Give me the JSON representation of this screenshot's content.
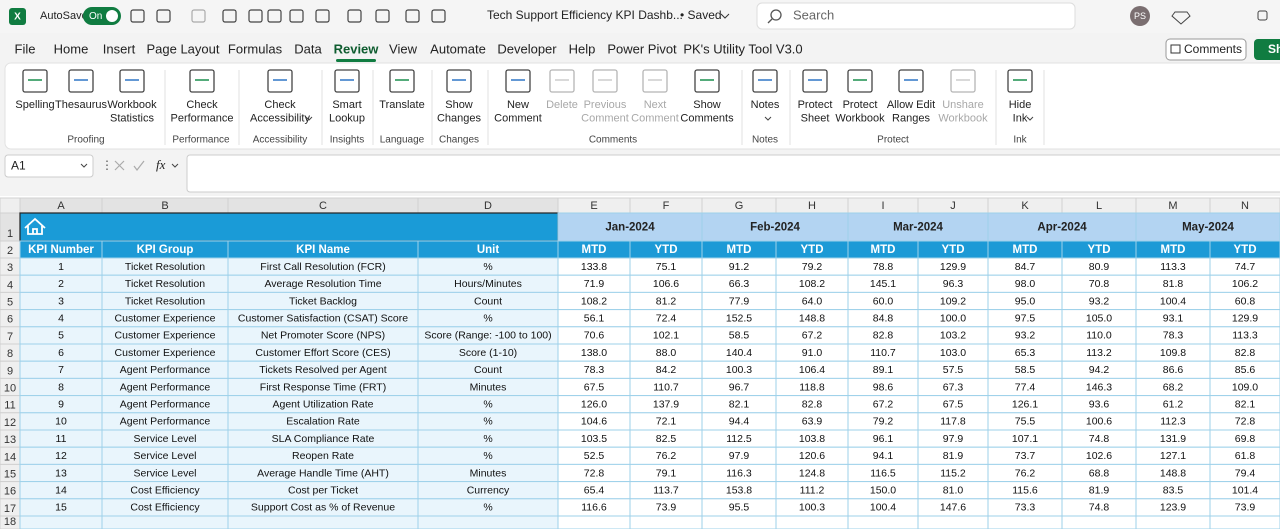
{
  "titlebar": {
    "app": "X",
    "autosave": "AutoSave",
    "toggle": "On",
    "filename": "Tech Support Efficiency KPI Dashb...",
    "saved": "• Saved",
    "search": "Search",
    "avatar": "PS"
  },
  "menu": {
    "tabs": [
      "File",
      "Home",
      "Insert",
      "Page Layout",
      "Formulas",
      "Data",
      "Review",
      "View",
      "Automate",
      "Developer",
      "Help",
      "Power Pivot",
      "PK's Utility Tool V3.0"
    ],
    "active": "Review",
    "comments": "Comments",
    "share": "Share"
  },
  "ribbon": {
    "buttons": [
      {
        "label": [
          "Spelling"
        ]
      },
      {
        "label": [
          "Thesaurus"
        ]
      },
      {
        "label": [
          "Workbook",
          "Statistics"
        ]
      },
      {
        "label": [
          "Check",
          "Performance"
        ]
      },
      {
        "label": [
          "Check",
          "Accessibility"
        ]
      },
      {
        "label": [
          "Smart",
          "Lookup"
        ]
      },
      {
        "label": [
          "Translate"
        ]
      },
      {
        "label": [
          "Show",
          "Changes"
        ]
      },
      {
        "label": [
          "New",
          "Comment"
        ]
      },
      {
        "label": [
          "Delete"
        ],
        "disabled": true
      },
      {
        "label": [
          "Previous",
          "Comment"
        ],
        "disabled": true
      },
      {
        "label": [
          "Next",
          "Comment"
        ],
        "disabled": true
      },
      {
        "label": [
          "Show",
          "Comments"
        ]
      },
      {
        "label": [
          "Notes"
        ]
      },
      {
        "label": [
          "Protect",
          "Sheet"
        ]
      },
      {
        "label": [
          "Protect",
          "Workbook"
        ]
      },
      {
        "label": [
          "Allow Edit",
          "Ranges"
        ]
      },
      {
        "label": [
          "Unshare",
          "Workbook"
        ],
        "disabled": true
      },
      {
        "label": [
          "Hide",
          "Ink"
        ]
      }
    ],
    "groups": [
      "Proofing",
      "Performance",
      "Accessibility",
      "Insights",
      "Language",
      "Changes",
      "Comments",
      "Notes",
      "Protect",
      "Ink"
    ]
  },
  "formula_bar": {
    "name_box": "A1",
    "fx": "fx"
  },
  "sheet": {
    "columns": [
      "A",
      "B",
      "C",
      "D",
      "E",
      "F",
      "G",
      "H",
      "I",
      "J",
      "K",
      "L",
      "M",
      "N"
    ],
    "row_numbers": [
      "1",
      "2",
      "3",
      "4",
      "5",
      "6",
      "7",
      "8",
      "9",
      "10",
      "11",
      "12",
      "13",
      "14",
      "15",
      "16",
      "17",
      "18"
    ],
    "months": [
      "Jan-2024",
      "Feb-2024",
      "Mar-2024",
      "Apr-2024",
      "May-2024"
    ],
    "header": [
      "KPI Number",
      "KPI Group",
      "KPI Name",
      "Unit",
      "MTD",
      "YTD",
      "MTD",
      "YTD",
      "MTD",
      "YTD",
      "MTD",
      "YTD",
      "MTD",
      "YTD"
    ],
    "rows": [
      [
        "1",
        "Ticket Resolution",
        "First Call Resolution (FCR)",
        "%",
        "133.8",
        "75.1",
        "91.2",
        "79.2",
        "78.8",
        "129.9",
        "84.7",
        "80.9",
        "113.3",
        "74.7"
      ],
      [
        "2",
        "Ticket Resolution",
        "Average Resolution Time",
        "Hours/Minutes",
        "71.9",
        "106.6",
        "66.3",
        "108.2",
        "145.1",
        "96.3",
        "98.0",
        "70.8",
        "81.8",
        "106.2"
      ],
      [
        "3",
        "Ticket Resolution",
        "Ticket Backlog",
        "Count",
        "108.2",
        "81.2",
        "77.9",
        "64.0",
        "60.0",
        "109.2",
        "95.0",
        "93.2",
        "100.4",
        "60.8"
      ],
      [
        "4",
        "Customer Experience",
        "Customer Satisfaction (CSAT) Score",
        "%",
        "56.1",
        "72.4",
        "152.5",
        "148.8",
        "84.8",
        "100.0",
        "97.5",
        "105.0",
        "93.1",
        "129.9"
      ],
      [
        "5",
        "Customer Experience",
        "Net Promoter Score (NPS)",
        "Score (Range: -100 to 100)",
        "70.6",
        "102.1",
        "58.5",
        "67.2",
        "82.8",
        "103.2",
        "93.2",
        "110.0",
        "78.3",
        "113.3"
      ],
      [
        "6",
        "Customer Experience",
        "Customer Effort Score (CES)",
        "Score (1-10)",
        "138.0",
        "88.0",
        "140.4",
        "91.0",
        "110.7",
        "103.0",
        "65.3",
        "113.2",
        "109.8",
        "82.8"
      ],
      [
        "7",
        "Agent Performance",
        "Tickets Resolved per Agent",
        "Count",
        "78.3",
        "84.2",
        "100.3",
        "106.4",
        "89.1",
        "57.5",
        "58.5",
        "94.2",
        "86.6",
        "85.6"
      ],
      [
        "8",
        "Agent Performance",
        "First Response Time (FRT)",
        "Minutes",
        "67.5",
        "110.7",
        "96.7",
        "118.8",
        "98.6",
        "67.3",
        "77.4",
        "146.3",
        "68.2",
        "109.0"
      ],
      [
        "9",
        "Agent Performance",
        "Agent Utilization Rate",
        "%",
        "126.0",
        "137.9",
        "82.1",
        "82.8",
        "67.2",
        "67.5",
        "126.1",
        "93.6",
        "61.2",
        "82.1"
      ],
      [
        "10",
        "Agent Performance",
        "Escalation Rate",
        "%",
        "104.6",
        "72.1",
        "94.4",
        "63.9",
        "79.2",
        "117.8",
        "75.5",
        "100.6",
        "112.3",
        "72.8"
      ],
      [
        "11",
        "Service Level",
        "SLA Compliance Rate",
        "%",
        "103.5",
        "82.5",
        "112.5",
        "103.8",
        "96.1",
        "97.9",
        "107.1",
        "74.8",
        "131.9",
        "69.8"
      ],
      [
        "12",
        "Service Level",
        "Reopen Rate",
        "%",
        "52.5",
        "76.2",
        "97.9",
        "120.6",
        "94.1",
        "81.9",
        "73.7",
        "102.6",
        "127.1",
        "61.8"
      ],
      [
        "13",
        "Service Level",
        "Average Handle Time (AHT)",
        "Minutes",
        "72.8",
        "79.1",
        "116.3",
        "124.8",
        "116.5",
        "115.2",
        "76.2",
        "68.8",
        "148.8",
        "79.4"
      ],
      [
        "14",
        "Cost Efficiency",
        "Cost per Ticket",
        "Currency",
        "65.4",
        "113.7",
        "153.8",
        "111.2",
        "150.0",
        "81.0",
        "115.6",
        "81.9",
        "83.5",
        "101.4"
      ],
      [
        "15",
        "Cost Efficiency",
        "Support Cost as % of Revenue",
        "%",
        "116.6",
        "73.9",
        "95.5",
        "100.3",
        "100.4",
        "147.6",
        "73.3",
        "74.8",
        "123.9",
        "73.9"
      ]
    ]
  }
}
